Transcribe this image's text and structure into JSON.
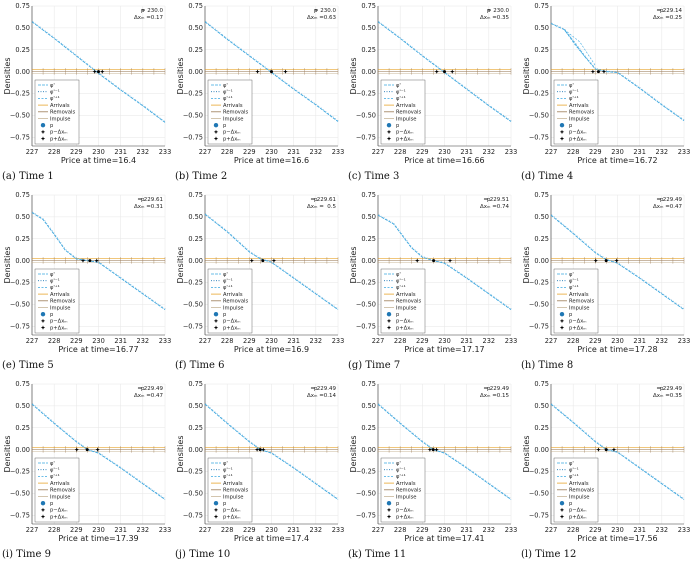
{
  "panels": [
    {
      "caption": "(a) Time 1",
      "xlabel": "Price at time=16.4",
      "p": "230.0",
      "dx": "0.17",
      "pos": 230.0,
      "lo": 229.83,
      "hi": 230.17,
      "curve": [
        [
          227,
          0.57
        ],
        [
          228,
          0.38
        ],
        [
          229,
          0.18
        ],
        [
          230,
          -0.02
        ],
        [
          231,
          -0.21
        ],
        [
          232,
          -0.39
        ],
        [
          233,
          -0.58
        ]
      ],
      "dashed": []
    },
    {
      "caption": "(b) Time 2",
      "xlabel": "Price at time=16.6",
      "p": "230.0",
      "dx": "0.63",
      "pos": 230.0,
      "lo": 229.37,
      "hi": 230.63,
      "curve": [
        [
          227,
          0.57
        ],
        [
          228,
          0.37
        ],
        [
          229,
          0.18
        ],
        [
          230,
          -0.01
        ],
        [
          231,
          -0.2
        ],
        [
          232,
          -0.38
        ],
        [
          233,
          -0.57
        ]
      ],
      "dashed": []
    },
    {
      "caption": "(c) Time 3",
      "xlabel": "Price at time=16.66",
      "p": "230.0",
      "dx": "0.35",
      "pos": 230.0,
      "lo": 229.65,
      "hi": 230.35,
      "curve": [
        [
          227,
          0.57
        ],
        [
          228,
          0.38
        ],
        [
          229,
          0.18
        ],
        [
          230,
          -0.01
        ],
        [
          231,
          -0.2
        ],
        [
          232,
          -0.39
        ],
        [
          233,
          -0.57
        ]
      ],
      "dashed": []
    },
    {
      "caption": "(d) Time 4",
      "xlabel": "Price at time=16.72",
      "p": "229.14",
      "dx": "0.25",
      "pos": 229.14,
      "lo": 228.89,
      "hi": 229.39,
      "curve": [
        [
          227,
          0.55
        ],
        [
          227.6,
          0.48
        ],
        [
          228,
          0.35
        ],
        [
          228.5,
          0.18
        ],
        [
          229,
          0.03
        ],
        [
          229.5,
          0.0
        ],
        [
          230,
          -0.01
        ],
        [
          231,
          -0.19
        ],
        [
          232,
          -0.38
        ],
        [
          233,
          -0.56
        ]
      ],
      "dashed": [
        [
          [
            227.6,
            0.48
          ],
          [
            228.3,
            0.34
          ],
          [
            229.0,
            0.07
          ]
        ],
        [
          [
            227.6,
            0.48
          ],
          [
            228.1,
            0.3
          ],
          [
            228.9,
            0.06
          ]
        ]
      ]
    },
    {
      "caption": "(e) Time 5",
      "xlabel": "Price at time=16.77",
      "p": "229.61",
      "dx": "0.31",
      "pos": 229.61,
      "lo": 229.3,
      "hi": 229.92,
      "curve": [
        [
          227,
          0.55
        ],
        [
          227.5,
          0.47
        ],
        [
          228,
          0.3
        ],
        [
          228.5,
          0.12
        ],
        [
          229,
          0.02
        ],
        [
          229.5,
          0.0
        ],
        [
          230,
          -0.02
        ],
        [
          231,
          -0.2
        ],
        [
          232,
          -0.38
        ],
        [
          233,
          -0.56
        ]
      ],
      "dashed": []
    },
    {
      "caption": "(f) Time 6",
      "xlabel": "Price at time=16.9",
      "p": "229.61",
      "dx": "0.5",
      "pos": 229.61,
      "lo": 229.11,
      "hi": 230.11,
      "curve": [
        [
          227,
          0.53
        ],
        [
          228,
          0.33
        ],
        [
          229,
          0.1
        ],
        [
          229.5,
          0.02
        ],
        [
          230,
          -0.02
        ],
        [
          231,
          -0.2
        ],
        [
          232,
          -0.38
        ],
        [
          233,
          -0.56
        ]
      ],
      "dashed": []
    },
    {
      "caption": "(g) Time 7",
      "xlabel": "Price at time=17.17",
      "p": "229.51",
      "dx": "0.74",
      "pos": 229.51,
      "lo": 228.77,
      "hi": 230.25,
      "curve": [
        [
          227,
          0.52
        ],
        [
          227.7,
          0.42
        ],
        [
          228,
          0.32
        ],
        [
          228.5,
          0.15
        ],
        [
          229,
          0.04
        ],
        [
          229.5,
          0.0
        ],
        [
          230,
          -0.03
        ],
        [
          231,
          -0.2
        ],
        [
          232,
          -0.38
        ],
        [
          233,
          -0.56
        ]
      ],
      "dashed": []
    },
    {
      "caption": "(h) Time 8",
      "xlabel": "Price at time=17.28",
      "p": "229.49",
      "dx": "0.47",
      "pos": 229.49,
      "lo": 229.02,
      "hi": 229.96,
      "curve": [
        [
          227,
          0.52
        ],
        [
          228,
          0.31
        ],
        [
          229,
          0.09
        ],
        [
          229.5,
          0.01
        ],
        [
          230,
          -0.03
        ],
        [
          231,
          -0.2
        ],
        [
          232,
          -0.38
        ],
        [
          233,
          -0.56
        ]
      ],
      "dashed": []
    },
    {
      "caption": "(i) Time 9",
      "xlabel": "Price at time=17.39",
      "p": "229.49",
      "dx": "0.47",
      "pos": 229.49,
      "lo": 229.02,
      "hi": 229.96,
      "curve": [
        [
          227,
          0.52
        ],
        [
          228,
          0.3
        ],
        [
          229,
          0.09
        ],
        [
          229.5,
          0.0
        ],
        [
          230,
          -0.04
        ],
        [
          231,
          -0.21
        ],
        [
          232,
          -0.39
        ],
        [
          233,
          -0.57
        ]
      ],
      "dashed": []
    },
    {
      "caption": "(j) Time 10",
      "xlabel": "Price at time=17.4",
      "p": "229.49",
      "dx": "0.14",
      "pos": 229.49,
      "lo": 229.35,
      "hi": 229.63,
      "curve": [
        [
          227,
          0.52
        ],
        [
          228,
          0.3
        ],
        [
          229,
          0.09
        ],
        [
          229.5,
          0.0
        ],
        [
          230,
          -0.04
        ],
        [
          231,
          -0.21
        ],
        [
          232,
          -0.39
        ],
        [
          233,
          -0.57
        ]
      ],
      "dashed": []
    },
    {
      "caption": "(k) Time 11",
      "xlabel": "Price at time=17.41",
      "p": "229.49",
      "dx": "0.15",
      "pos": 229.49,
      "lo": 229.34,
      "hi": 229.64,
      "curve": [
        [
          227,
          0.52
        ],
        [
          228,
          0.3
        ],
        [
          229,
          0.09
        ],
        [
          229.5,
          0.0
        ],
        [
          230,
          -0.04
        ],
        [
          231,
          -0.21
        ],
        [
          232,
          -0.39
        ],
        [
          233,
          -0.57
        ]
      ],
      "dashed": []
    },
    {
      "caption": "(l) Time 12",
      "xlabel": "Price at time=17.56",
      "p": "229.49",
      "dx": "0.35",
      "pos": 229.49,
      "lo": 229.14,
      "hi": 229.84,
      "curve": [
        [
          227,
          0.52
        ],
        [
          228,
          0.31
        ],
        [
          229,
          0.09
        ],
        [
          229.5,
          0.0
        ],
        [
          230,
          -0.03
        ],
        [
          231,
          -0.21
        ],
        [
          232,
          -0.39
        ],
        [
          233,
          -0.57
        ]
      ],
      "dashed": []
    }
  ],
  "chart_data": {
    "type": "line",
    "ylabel": "Densities",
    "xlim": [
      227,
      233
    ],
    "ylim": [
      -0.85,
      0.75
    ],
    "xticks": [
      "227",
      "228",
      "229",
      "230",
      "231",
      "232",
      "233"
    ],
    "yticks": [
      {
        "v": 0.75,
        "t": "0.75"
      },
      {
        "v": 0.5,
        "t": "0.50"
      },
      {
        "v": 0.25,
        "t": "0.25"
      },
      {
        "v": 0,
        "t": "0.00"
      },
      {
        "v": -0.25,
        "t": "−0.25"
      },
      {
        "v": -0.5,
        "t": "−0.50"
      },
      {
        "v": -0.75,
        "t": "−0.75"
      }
    ],
    "grid": true,
    "legend_position": "bottom-left",
    "legend": [
      "φ'",
      "φ'⁻¹",
      "φ'⁺¹",
      "Arrivals",
      "Removals",
      "Impulse",
      "p",
      "p−Δxₘ",
      "p+Δxₘ"
    ],
    "annotation_labels": {
      "p": "p",
      "dx": "Δxₘ ="
    }
  },
  "colors": {
    "curve": "#3aa7e0",
    "curve_dark": "#1f77b4",
    "arrivals": "#e7a52c",
    "removals": "#9b7a55",
    "impulse": "#c9b79a",
    "marker": "#000000",
    "grid": "#e6e6e6"
  }
}
